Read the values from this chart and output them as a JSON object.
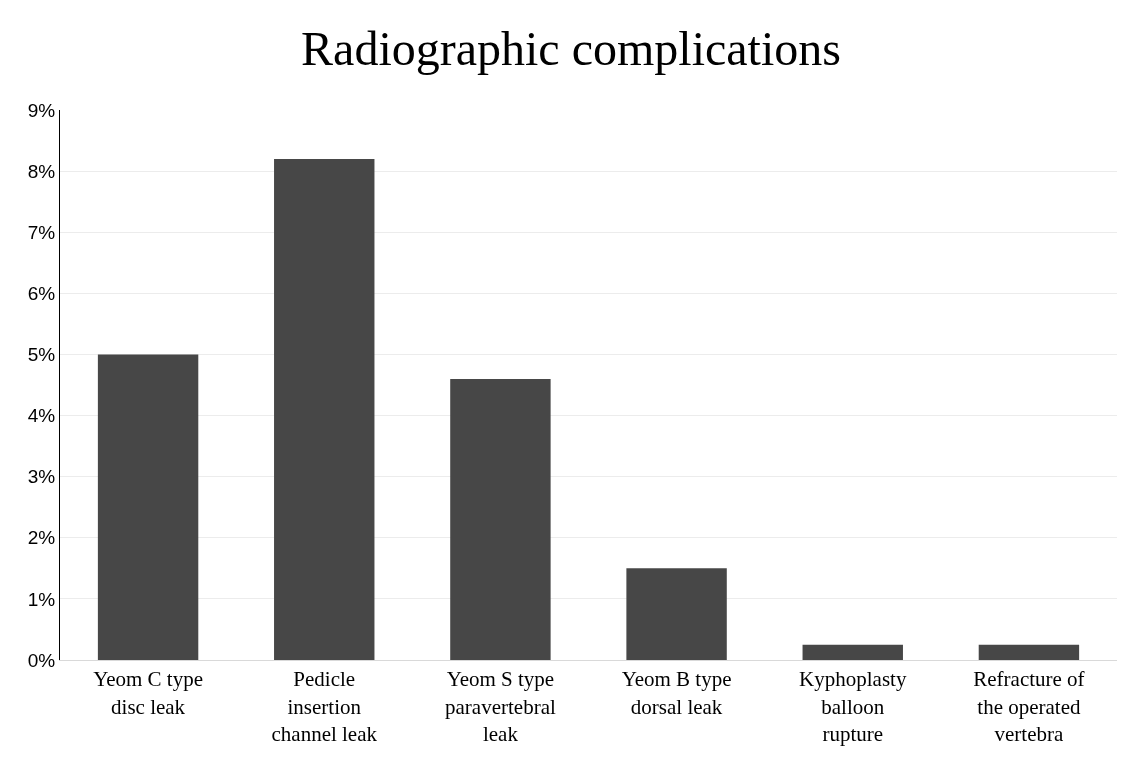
{
  "chart_data": {
    "type": "bar",
    "title": "Radiographic complications",
    "categories": [
      "Yeom C type disc leak",
      "Pedicle insertion channel leak",
      "Yeom S type paravertebral leak",
      "Yeom B type dorsal leak",
      "Kyphoplasty balloon rupture",
      "Refracture of the operated vertebra"
    ],
    "values": [
      5.0,
      8.2,
      4.6,
      1.5,
      0.25,
      0.25
    ],
    "color": "#474747",
    "ylim": [
      0,
      9
    ],
    "yticks": [
      {
        "value": 0,
        "label": "0%"
      },
      {
        "value": 1,
        "label": "1%"
      },
      {
        "value": 2,
        "label": "2%"
      },
      {
        "value": 3,
        "label": "3%"
      },
      {
        "value": 4,
        "label": "4%"
      },
      {
        "value": 5,
        "label": "5%"
      },
      {
        "value": 6,
        "label": "6%"
      },
      {
        "value": 7,
        "label": "7%"
      },
      {
        "value": 8,
        "label": "8%"
      },
      {
        "value": 9,
        "label": "9%"
      }
    ],
    "grid": "y"
  }
}
